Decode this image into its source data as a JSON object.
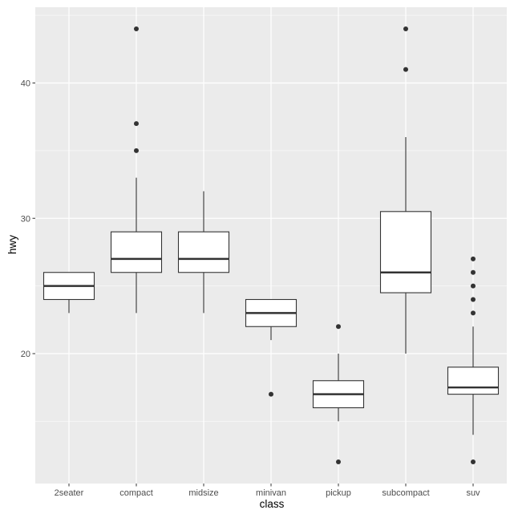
{
  "chart_data": {
    "type": "boxplot",
    "title": "",
    "xlabel": "class",
    "ylabel": "hwy",
    "ylim": [
      10.4,
      45.6
    ],
    "yticks": [
      20,
      30,
      40
    ],
    "grid": true,
    "categories": [
      "2seater",
      "compact",
      "midsize",
      "minivan",
      "pickup",
      "subcompact",
      "suv"
    ],
    "boxes": [
      {
        "category": "2seater",
        "lower_whisker": 23,
        "q1": 24,
        "median": 25,
        "q3": 26,
        "upper_whisker": 26,
        "outliers": []
      },
      {
        "category": "compact",
        "lower_whisker": 23,
        "q1": 26,
        "median": 27,
        "q3": 29,
        "upper_whisker": 33,
        "outliers": [
          35,
          37,
          44
        ]
      },
      {
        "category": "midsize",
        "lower_whisker": 23,
        "q1": 26,
        "median": 27,
        "q3": 29,
        "upper_whisker": 32,
        "outliers": []
      },
      {
        "category": "minivan",
        "lower_whisker": 21,
        "q1": 22,
        "median": 23,
        "q3": 24,
        "upper_whisker": 24,
        "outliers": [
          17
        ]
      },
      {
        "category": "pickup",
        "lower_whisker": 15,
        "q1": 16,
        "median": 17,
        "q3": 18,
        "upper_whisker": 20,
        "outliers": [
          12,
          22
        ]
      },
      {
        "category": "subcompact",
        "lower_whisker": 20,
        "q1": 24.5,
        "median": 26,
        "q3": 30.5,
        "upper_whisker": 36,
        "outliers": [
          41,
          44
        ]
      },
      {
        "category": "suv",
        "lower_whisker": 14,
        "q1": 17,
        "median": 17.5,
        "q3": 19,
        "upper_whisker": 22,
        "outliers": [
          12,
          23,
          24,
          25,
          26,
          27
        ]
      }
    ],
    "colors": {
      "panel_background": "#EBEBEB",
      "grid": "#FFFFFF",
      "box_fill": "#FFFFFF",
      "box_stroke": "#333333",
      "outlier": "#333333",
      "tick_label": "#4D4D4D",
      "axis_title": "#000000"
    }
  }
}
